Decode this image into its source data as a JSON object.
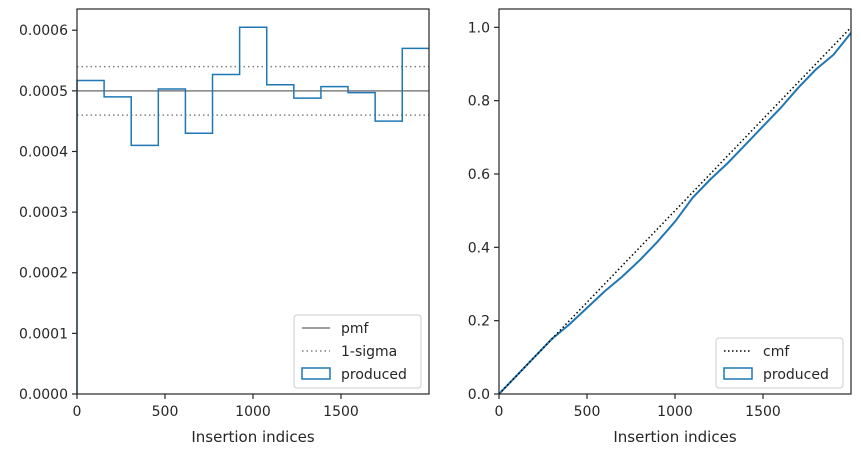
{
  "chart_data": [
    {
      "type": "histogram-step",
      "xlabel": "Insertion indices",
      "ylabel": "",
      "xlim": [
        0,
        2000
      ],
      "ylim": [
        0,
        0.000635
      ],
      "xticks": [
        0,
        500,
        1000,
        1500
      ],
      "xtick_labels": [
        "0",
        "500",
        "1000",
        "1500"
      ],
      "yticks": [
        0,
        0.0001,
        0.0002,
        0.0003,
        0.0004,
        0.0005,
        0.0006
      ],
      "ytick_labels": [
        "0.0000",
        "0.0001",
        "0.0002",
        "0.0003",
        "0.0004",
        "0.0005",
        "0.0006"
      ],
      "grid": false,
      "legend_position": "bottom-right",
      "bin_edges": [
        0,
        154,
        308,
        462,
        616,
        770,
        924,
        1078,
        1232,
        1386,
        1540,
        1694,
        1848,
        2000
      ],
      "values": [
        0.000517,
        0.00049,
        0.00041,
        0.000503,
        0.00043,
        0.000527,
        0.000605,
        0.00051,
        0.000488,
        0.000507,
        0.000497,
        0.00045,
        0.00057
      ],
      "pmf_value": 0.0005,
      "sigma_lines": [
        0.00054,
        0.00046
      ],
      "series": [
        {
          "name": "pmf",
          "style": "solid",
          "color": "#808080"
        },
        {
          "name": "1-sigma",
          "style": "dotted",
          "color": "#808080"
        },
        {
          "name": "produced",
          "style": "step",
          "color": "#1f77b4"
        }
      ]
    },
    {
      "type": "line",
      "xlabel": "Insertion indices",
      "ylabel": "",
      "xlim": [
        0,
        2000
      ],
      "ylim": [
        0,
        1.05
      ],
      "xticks": [
        0,
        500,
        1000,
        1500
      ],
      "xtick_labels": [
        "0",
        "500",
        "1000",
        "1500"
      ],
      "yticks": [
        0,
        0.2,
        0.4,
        0.6,
        0.8,
        1.0
      ],
      "ytick_labels": [
        "0.0",
        "0.2",
        "0.4",
        "0.6",
        "0.8",
        "1.0"
      ],
      "grid": false,
      "legend_position": "bottom-right",
      "cmf": {
        "x": [
          0,
          2000
        ],
        "y": [
          0,
          1.0
        ]
      },
      "produced": {
        "x": [
          0,
          100,
          200,
          300,
          400,
          500,
          600,
          700,
          800,
          900,
          1000,
          1100,
          1200,
          1300,
          1400,
          1500,
          1600,
          1700,
          1800,
          1900,
          2000
        ],
        "y": [
          0,
          0.05,
          0.1,
          0.15,
          0.19,
          0.235,
          0.28,
          0.32,
          0.365,
          0.415,
          0.47,
          0.535,
          0.585,
          0.63,
          0.68,
          0.73,
          0.78,
          0.835,
          0.885,
          0.925,
          0.985
        ]
      },
      "series": [
        {
          "name": "cmf",
          "style": "dotted",
          "color": "#000000"
        },
        {
          "name": "produced",
          "style": "line",
          "color": "#1f77b4"
        }
      ]
    }
  ]
}
